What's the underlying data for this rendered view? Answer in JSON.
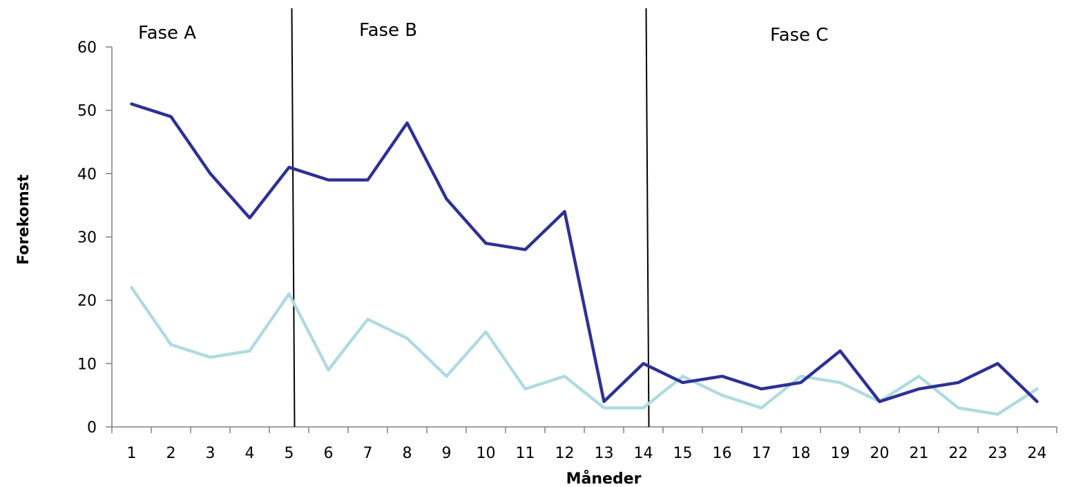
{
  "chart_data": {
    "type": "line",
    "title": "",
    "xlabel": "Måneder",
    "ylabel": "Forekomst",
    "x": [
      1,
      2,
      3,
      4,
      5,
      6,
      7,
      8,
      9,
      10,
      11,
      12,
      13,
      14,
      15,
      16,
      17,
      18,
      19,
      20,
      21,
      22,
      23,
      24
    ],
    "ylim": [
      0,
      60
    ],
    "yticks": [
      0,
      10,
      20,
      30,
      40,
      50,
      60
    ],
    "grid": false,
    "legend": "none",
    "series": [
      {
        "color": "#2e3192",
        "values": [
          51,
          49,
          40,
          33,
          41,
          39,
          39,
          48,
          36,
          29,
          28,
          34,
          4,
          10,
          7,
          8,
          6,
          7,
          12,
          4,
          6,
          7,
          10,
          4
        ]
      },
      {
        "color": "#b0dbe0",
        "values": [
          22,
          13,
          11,
          12,
          21,
          9,
          17,
          14,
          8,
          15,
          6,
          8,
          3,
          3,
          8,
          5,
          3,
          8,
          7,
          4,
          8,
          3,
          2,
          6
        ]
      }
    ],
    "phases": [
      {
        "label": "Fase A"
      },
      {
        "label": "Fase B",
        "start_after_x": 5
      },
      {
        "label": "Fase C",
        "start_after_x": 14
      }
    ]
  }
}
